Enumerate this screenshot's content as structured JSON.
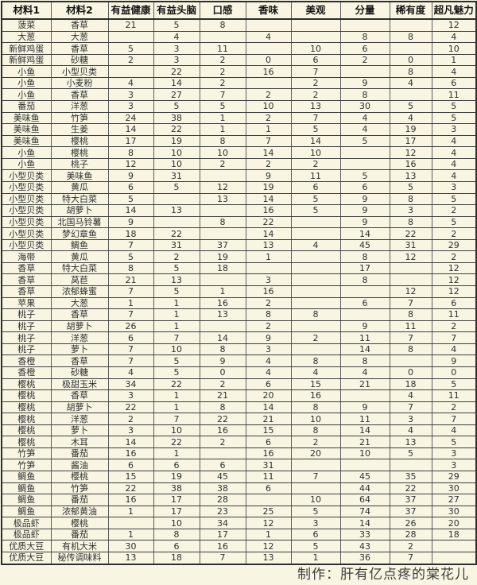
{
  "page": {
    "background_color": "#f8f6e3",
    "border_color": "#2e2e2e",
    "text_color": "#2b2b2b"
  },
  "table": {
    "columns": [
      "材料1",
      "材料2",
      "有益健康",
      "有益头脑",
      "口感",
      "香味",
      "美观",
      "分量",
      "稀有度",
      "超凡魅力"
    ],
    "rows": [
      [
        "菠菜",
        "香草",
        "21",
        "5",
        "8",
        "",
        "",
        "",
        "",
        "12"
      ],
      [
        "大葱",
        "大葱",
        "",
        "4",
        "",
        "4",
        "",
        "8",
        "8",
        "4"
      ],
      [
        "新鲜鸡蛋",
        "香草",
        "5",
        "3",
        "11",
        "",
        "10",
        "6",
        "",
        "10"
      ],
      [
        "新鲜鸡蛋",
        "砂糖",
        "2",
        "3",
        "2",
        "0",
        "6",
        "2",
        "0",
        "1"
      ],
      [
        "小鱼",
        "小型贝类",
        "",
        "22",
        "2",
        "16",
        "7",
        "",
        "8",
        "4"
      ],
      [
        "小鱼",
        "小麦粉",
        "4",
        "14",
        "2",
        "",
        "2",
        "9",
        "4",
        "6"
      ],
      [
        "小鱼",
        "香草",
        "3",
        "27",
        "7",
        "2",
        "2",
        "8",
        "",
        "11"
      ],
      [
        "番茄",
        "洋葱",
        "3",
        "5",
        "5",
        "10",
        "13",
        "30",
        "5",
        "5"
      ],
      [
        "美味鱼",
        "竹笋",
        "24",
        "38",
        "1",
        "2",
        "7",
        "4",
        "4",
        "5"
      ],
      [
        "美味鱼",
        "生姜",
        "14",
        "22",
        "1",
        "1",
        "5",
        "4",
        "19",
        "3"
      ],
      [
        "美味鱼",
        "樱桃",
        "17",
        "19",
        "8",
        "7",
        "14",
        "5",
        "17",
        "4"
      ],
      [
        "小鱼",
        "樱桃",
        "8",
        "10",
        "10",
        "14",
        "10",
        "",
        "12",
        "4"
      ],
      [
        "小鱼",
        "桃子",
        "12",
        "10",
        "2",
        "2",
        "2",
        "",
        "16",
        "4"
      ],
      [
        "小型贝类",
        "美味鱼",
        "9",
        "31",
        "",
        "9",
        "11",
        "5",
        "13",
        "4"
      ],
      [
        "小型贝类",
        "黄瓜",
        "6",
        "5",
        "12",
        "19",
        "6",
        "6",
        "5",
        "3"
      ],
      [
        "小型贝类",
        "特大白菜",
        "5",
        "",
        "13",
        "14",
        "5",
        "9",
        "8",
        "5"
      ],
      [
        "小型贝类",
        "胡萝卜",
        "14",
        "13",
        "",
        "16",
        "5",
        "9",
        "3",
        "2"
      ],
      [
        "小型贝类",
        "北国马铃薯",
        "9",
        "",
        "8",
        "22",
        "",
        "9",
        "8",
        "5"
      ],
      [
        "小型贝类",
        "梦幻章鱼",
        "18",
        "22",
        "",
        "14",
        "",
        "14",
        "22",
        "2"
      ],
      [
        "小型贝类",
        "鲷鱼",
        "7",
        "31",
        "37",
        "13",
        "4",
        "45",
        "31",
        "29"
      ],
      [
        "海带",
        "黄瓜",
        "5",
        "2",
        "19",
        "1",
        "",
        "8",
        "12",
        "2"
      ],
      [
        "香草",
        "特大白菜",
        "8",
        "5",
        "18",
        "",
        "",
        "17",
        "",
        "12"
      ],
      [
        "香草",
        "莴苣",
        "21",
        "13",
        "",
        "3",
        "",
        "8",
        "",
        "12"
      ],
      [
        "香草",
        "浓郁蜂蜜",
        "7",
        "5",
        "1",
        "16",
        "",
        "",
        "12",
        "12"
      ],
      [
        "苹果",
        "大葱",
        "1",
        "1",
        "16",
        "2",
        "",
        "6",
        "7",
        "6"
      ],
      [
        "桃子",
        "香草",
        "7",
        "1",
        "13",
        "8",
        "8",
        "",
        "8",
        "11"
      ],
      [
        "桃子",
        "胡萝卜",
        "26",
        "1",
        "",
        "2",
        "",
        "9",
        "11",
        "2"
      ],
      [
        "桃子",
        "洋葱",
        "6",
        "7",
        "14",
        "9",
        "2",
        "11",
        "7",
        "7"
      ],
      [
        "桃子",
        "萝卜",
        "7",
        "10",
        "8",
        "3",
        "",
        "14",
        "8",
        "4"
      ],
      [
        "香橙",
        "香草",
        "7",
        "5",
        "9",
        "4",
        "8",
        "8",
        "",
        "9"
      ],
      [
        "香橙",
        "砂糖",
        "4",
        "5",
        "0",
        "4",
        "4",
        "4",
        "0",
        "0"
      ],
      [
        "樱桃",
        "极甜玉米",
        "34",
        "22",
        "2",
        "6",
        "15",
        "21",
        "18",
        "5"
      ],
      [
        "樱桃",
        "香草",
        "3",
        "1",
        "21",
        "20",
        "16",
        "",
        "4",
        "11"
      ],
      [
        "樱桃",
        "胡萝卜",
        "22",
        "1",
        "8",
        "14",
        "8",
        "9",
        "7",
        "2"
      ],
      [
        "樱桃",
        "洋葱",
        "2",
        "7",
        "22",
        "21",
        "10",
        "11",
        "3",
        "7"
      ],
      [
        "樱桃",
        "萝卜",
        "3",
        "10",
        "16",
        "15",
        "8",
        "14",
        "4",
        "4"
      ],
      [
        "樱桃",
        "木耳",
        "14",
        "22",
        "2",
        "6",
        "2",
        "21",
        "13",
        "5"
      ],
      [
        "竹笋",
        "番茄",
        "16",
        "1",
        "",
        "16",
        "20",
        "10",
        "5",
        "3"
      ],
      [
        "竹笋",
        "酱油",
        "6",
        "6",
        "6",
        "31",
        "",
        "",
        "",
        "3"
      ],
      [
        "鲷鱼",
        "樱桃",
        "15",
        "19",
        "45",
        "11",
        "7",
        "45",
        "35",
        "29"
      ],
      [
        "鲷鱼",
        "竹笋",
        "22",
        "38",
        "38",
        "6",
        "",
        "44",
        "22",
        "30"
      ],
      [
        "鲷鱼",
        "番茄",
        "16",
        "17",
        "28",
        "",
        "10",
        "64",
        "37",
        "27"
      ],
      [
        "鲷鱼",
        "浓郁黄油",
        "1",
        "17",
        "23",
        "25",
        "5",
        "74",
        "37",
        "30"
      ],
      [
        "极品虾",
        "樱桃",
        "",
        "10",
        "34",
        "12",
        "3",
        "14",
        "26",
        "20"
      ],
      [
        "极品虾",
        "番茄",
        "1",
        "8",
        "17",
        "1",
        "6",
        "33",
        "28",
        "18"
      ],
      [
        "优质大豆",
        "有机大米",
        "30",
        "6",
        "16",
        "12",
        "5",
        "43",
        "2",
        ""
      ],
      [
        "优质大豆",
        "秘传调味料",
        "13",
        "18",
        "7",
        "13",
        "1",
        "36",
        "7",
        ""
      ]
    ]
  },
  "footer": {
    "credit": "制作：肝有亿点疼的棠花儿"
  }
}
